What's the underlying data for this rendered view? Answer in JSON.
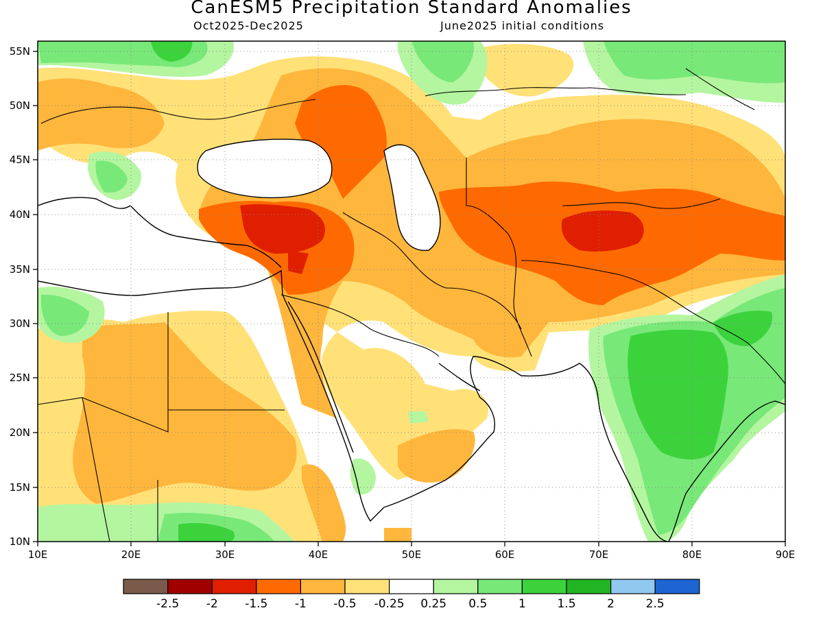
{
  "header": {
    "title": "CanESM5 Precipitation Standard Anomalies",
    "period": "Oct2025-Dec2025",
    "init": "June2025 initial conditions"
  },
  "axes": {
    "lon_labels": [
      "10E",
      "20E",
      "30E",
      "40E",
      "50E",
      "60E",
      "70E",
      "80E",
      "90E"
    ],
    "lat_labels": [
      "10N",
      "15N",
      "20N",
      "25N",
      "30N",
      "35N",
      "40N",
      "45N",
      "50N",
      "55N"
    ]
  },
  "colorbar": {
    "colors": [
      "#7a5a4a",
      "#a00000",
      "#e01e00",
      "#ff6a00",
      "#ffb63c",
      "#ffe178",
      "#ffffff",
      "#b4f5a0",
      "#78e878",
      "#3cd23c",
      "#22b422",
      "#90c8f0",
      "#1e64d2"
    ],
    "labels": [
      "-2.5",
      "-2",
      "-1.5",
      "-1",
      "-0.5",
      "-0.25",
      "0.25",
      "0.5",
      "1",
      "1.5",
      "2",
      "2.5"
    ]
  },
  "colors": {
    "strong_dry": "#e01e00",
    "dry": "#ff6a00",
    "moderate_dry": "#ffb63c",
    "weak_dry": "#ffe178",
    "weak_wet": "#b4f5a0",
    "wet": "#78e878",
    "strong_wet": "#3cd23c",
    "very_wet": "#22b422"
  }
}
